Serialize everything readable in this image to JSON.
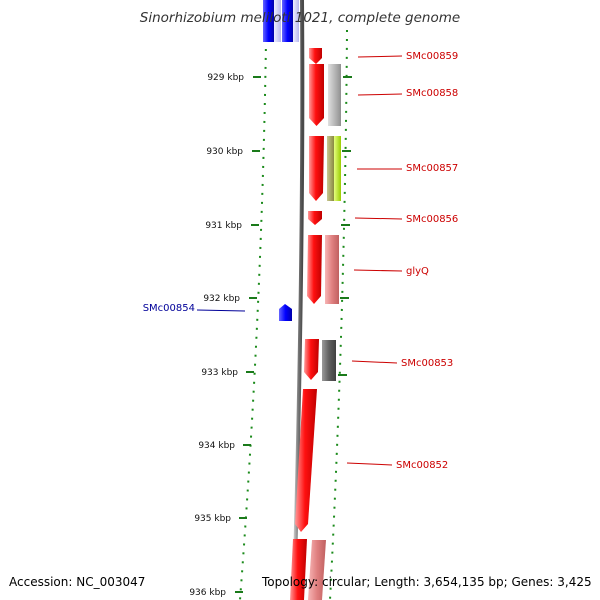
{
  "title": "Sinorhizobium meliloti 1021, complete genome",
  "accession": "Accession: NC_003047",
  "summary": "Topology: circular; Length: 3,654,135 bp; Genes: 3,425",
  "colors": {
    "backbone": "#8a8a8a",
    "tick": "#1a7a1a",
    "gc_dots": "#1a8a1a",
    "forward_gene": "#ff0000",
    "reverse_gene": "#0000ff",
    "forward_label": "#cc0000",
    "reverse_label": "#000099"
  },
  "ticks": [
    "929 kbp",
    "930 kbp",
    "931 kbp",
    "932 kbp",
    "933 kbp",
    "934 kbp",
    "935 kbp",
    "936 kbp"
  ],
  "gene_labels": [
    {
      "id": "SMc00859",
      "text": "SMc00859",
      "strand": "forward"
    },
    {
      "id": "SMc00858",
      "text": "SMc00858",
      "strand": "forward"
    },
    {
      "id": "SMc00857",
      "text": "SMc00857",
      "strand": "forward"
    },
    {
      "id": "SMc00856",
      "text": "SMc00856",
      "strand": "forward"
    },
    {
      "id": "glyQ",
      "text": "glyQ",
      "strand": "forward"
    },
    {
      "id": "SMc00854",
      "text": "SMc00854",
      "strand": "reverse"
    },
    {
      "id": "SMc00853",
      "text": "SMc00853",
      "strand": "forward"
    },
    {
      "id": "SMc00852",
      "text": "SMc00852",
      "strand": "forward"
    }
  ]
}
